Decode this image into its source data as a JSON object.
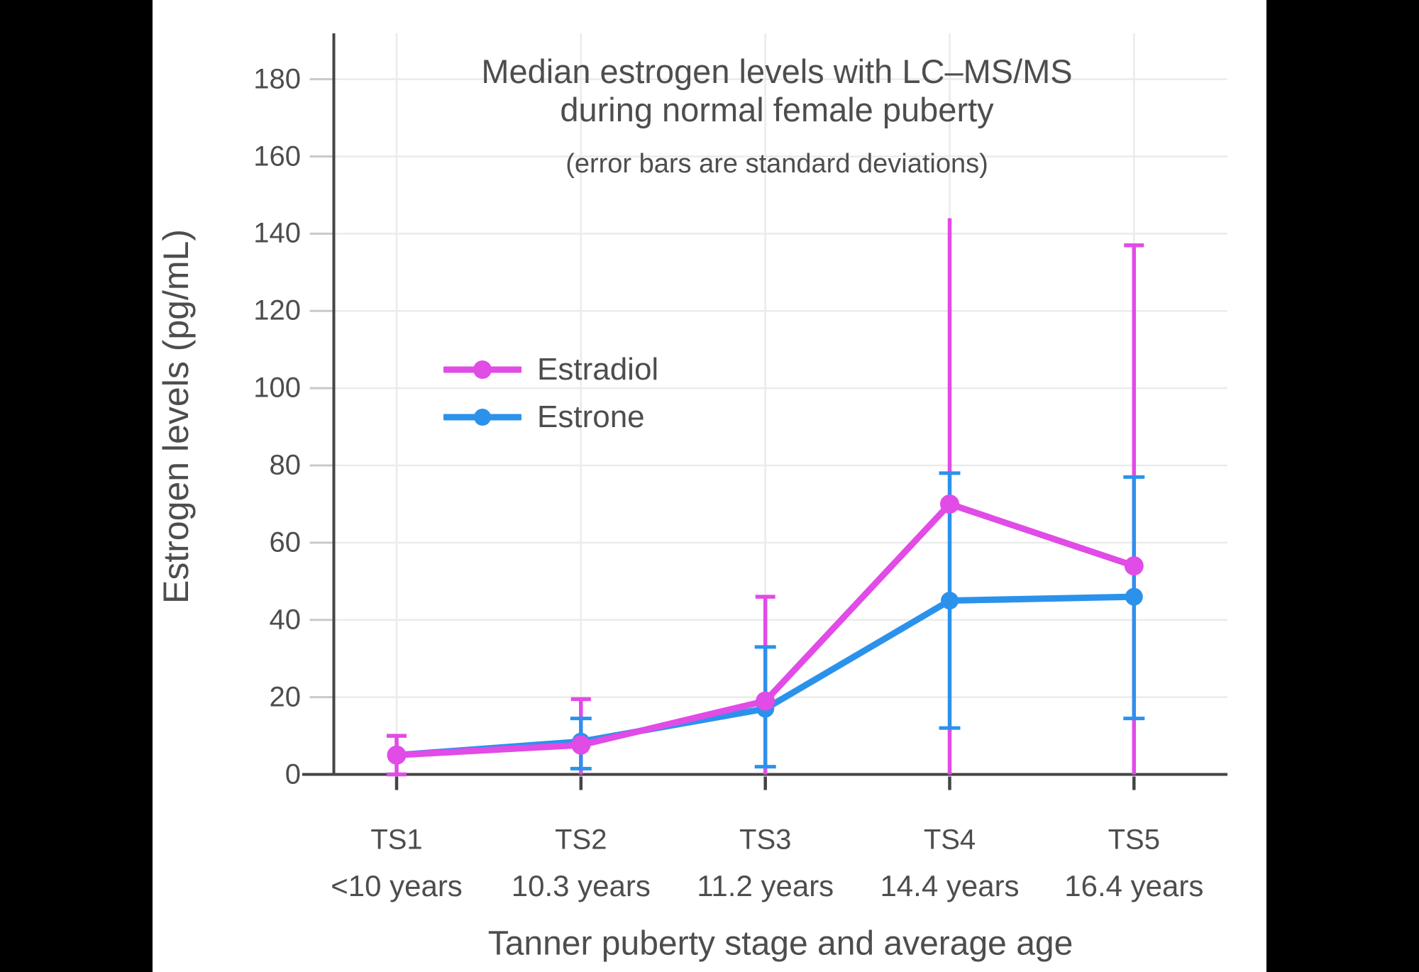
{
  "canvas": {
    "background": "#000000",
    "panel_background": "#ffffff"
  },
  "chart_data": {
    "type": "line",
    "title_lines": [
      "Median estrogen levels with LC–MS/MS",
      "during normal female puberty"
    ],
    "subtitle": "(error bars are standard deviations)",
    "xlabel": "Tanner puberty stage and average age",
    "ylabel": "Estrogen levels (pg/mL)",
    "categories": [
      "TS1",
      "TS2",
      "TS3",
      "TS4",
      "TS5"
    ],
    "category_ages": [
      "<10 years",
      "10.3 years",
      "11.2 years",
      "14.4 years",
      "16.4 years"
    ],
    "yticks": [
      0,
      20,
      40,
      60,
      80,
      100,
      120,
      140,
      160,
      180
    ],
    "ylim": [
      0,
      192
    ],
    "grid": true,
    "legend_position": "inside-top-left",
    "axis_color": "#444444",
    "grid_color": "#ebebeb",
    "tick_color": "#c9c9c9",
    "text_color": "#4d4d4d",
    "series": [
      {
        "name": "Estradiol",
        "color": "#e14be6",
        "values": [
          5,
          7.6,
          19,
          70,
          54
        ],
        "error_top": [
          10,
          19.5,
          46,
          144,
          137
        ],
        "error_bottom": [
          0,
          0,
          0,
          0,
          0
        ],
        "error_top_cap": [
          true,
          true,
          true,
          false,
          true
        ],
        "error_bottom_cap": [
          true,
          false,
          false,
          false,
          false
        ]
      },
      {
        "name": "Estrone",
        "color": "#2b92ec",
        "values": [
          5,
          8.5,
          17,
          45,
          46
        ],
        "error_top": [
          null,
          14.5,
          33,
          78,
          77
        ],
        "error_bottom": [
          null,
          1.5,
          2,
          12,
          14.5
        ],
        "error_top_cap": [
          false,
          true,
          true,
          true,
          true
        ],
        "error_bottom_cap": [
          false,
          true,
          true,
          true,
          true
        ]
      }
    ]
  }
}
